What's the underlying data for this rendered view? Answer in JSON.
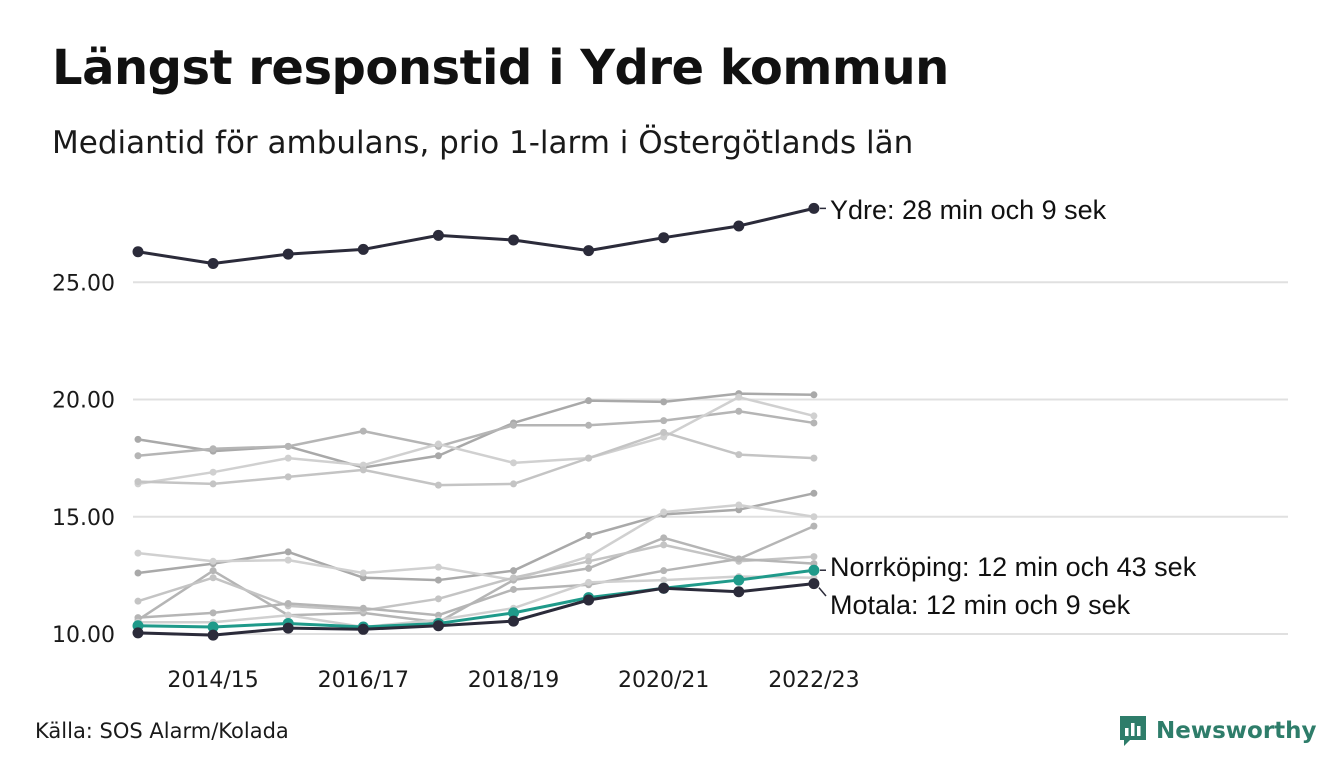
{
  "header": {
    "title": "Längst responstid i Ydre kommun",
    "subtitle": "Mediantid för ambulans, prio 1-larm i Östergötlands län"
  },
  "footer": {
    "source": "Källa: SOS Alarm/Kolada",
    "brand": "Newsworthy"
  },
  "colors": {
    "highlight_dark": "#2b2b3a",
    "highlight_teal": "#1f9a8a",
    "background_series": [
      "#a9a9a9",
      "#c4c4c4",
      "#b5b5b5",
      "#d0d0d0"
    ],
    "gridline": "#e0e0e0",
    "brand": "#2e7d6a"
  },
  "chart_data": {
    "type": "line",
    "x": [
      "2013/14",
      "2014/15",
      "2015/16",
      "2016/17",
      "2017/18",
      "2018/19",
      "2019/20",
      "2020/21",
      "2021/22",
      "2022/23"
    ],
    "x_tick_labels": [
      "2014/15",
      "2016/17",
      "2018/19",
      "2020/21",
      "2022/23"
    ],
    "y_ticks": [
      "10.00",
      "15.00",
      "20.00",
      "25.00"
    ],
    "ylim": [
      9.9,
      28.8
    ],
    "grid": true,
    "series": [
      {
        "values": [
          18.3,
          17.8,
          18.0,
          17.1,
          17.6,
          19.0,
          19.95,
          19.9,
          20.25,
          20.2
        ],
        "shade": 0
      },
      {
        "values": [
          17.6,
          17.9,
          18.0,
          18.65,
          18.0,
          18.9,
          18.9,
          19.1,
          19.5,
          19.0
        ],
        "shade": 2
      },
      {
        "values": [
          16.4,
          16.9,
          17.5,
          17.2,
          18.1,
          17.3,
          17.5,
          18.4,
          20.1,
          19.3
        ],
        "shade": 3
      },
      {
        "values": [
          16.5,
          16.4,
          16.7,
          17.0,
          16.35,
          16.4,
          17.5,
          18.6,
          17.65,
          17.5
        ],
        "shade": 1
      },
      {
        "values": [
          12.6,
          13.0,
          13.5,
          12.4,
          12.3,
          12.7,
          14.2,
          15.1,
          15.3,
          16.0
        ],
        "shade": 0
      },
      {
        "values": [
          13.45,
          13.1,
          13.15,
          12.6,
          12.85,
          12.3,
          13.3,
          15.2,
          15.5,
          15.0
        ],
        "shade": 3
      },
      {
        "values": [
          10.6,
          12.7,
          10.8,
          10.9,
          10.5,
          12.3,
          12.8,
          14.1,
          13.2,
          14.6
        ],
        "shade": 2
      },
      {
        "values": [
          11.4,
          12.4,
          11.2,
          11.0,
          11.5,
          12.4,
          13.1,
          13.8,
          13.1,
          13.3
        ],
        "shade": 1
      },
      {
        "values": [
          10.7,
          10.9,
          11.3,
          11.1,
          10.8,
          11.9,
          12.1,
          12.7,
          13.2,
          13.0
        ],
        "shade": 2
      },
      {
        "values": [
          10.5,
          10.5,
          10.8,
          10.3,
          10.6,
          11.1,
          12.2,
          12.3,
          12.45,
          12.4
        ],
        "shade": 3
      },
      {
        "name": "Ydre",
        "values": [
          26.3,
          25.8,
          26.2,
          26.4,
          27.0,
          26.8,
          26.35,
          26.9,
          27.4,
          28.15
        ],
        "highlight": "dark"
      },
      {
        "name": "Norrköping",
        "values": [
          10.35,
          10.3,
          10.45,
          10.3,
          10.45,
          10.9,
          11.55,
          11.95,
          12.3,
          12.72
        ],
        "highlight": "teal"
      },
      {
        "name": "Motala",
        "values": [
          10.05,
          9.95,
          10.25,
          10.2,
          10.35,
          10.55,
          11.45,
          11.95,
          11.8,
          12.15
        ],
        "highlight": "dark"
      }
    ],
    "annotations": [
      {
        "series": "Ydre",
        "label": "Ydre: 28 min och 9 sek"
      },
      {
        "series": "Norrköping",
        "label": "Norrköping: 12 min och 43 sek"
      },
      {
        "series": "Motala",
        "label": "Motala: 12 min och 9 sek"
      }
    ]
  }
}
